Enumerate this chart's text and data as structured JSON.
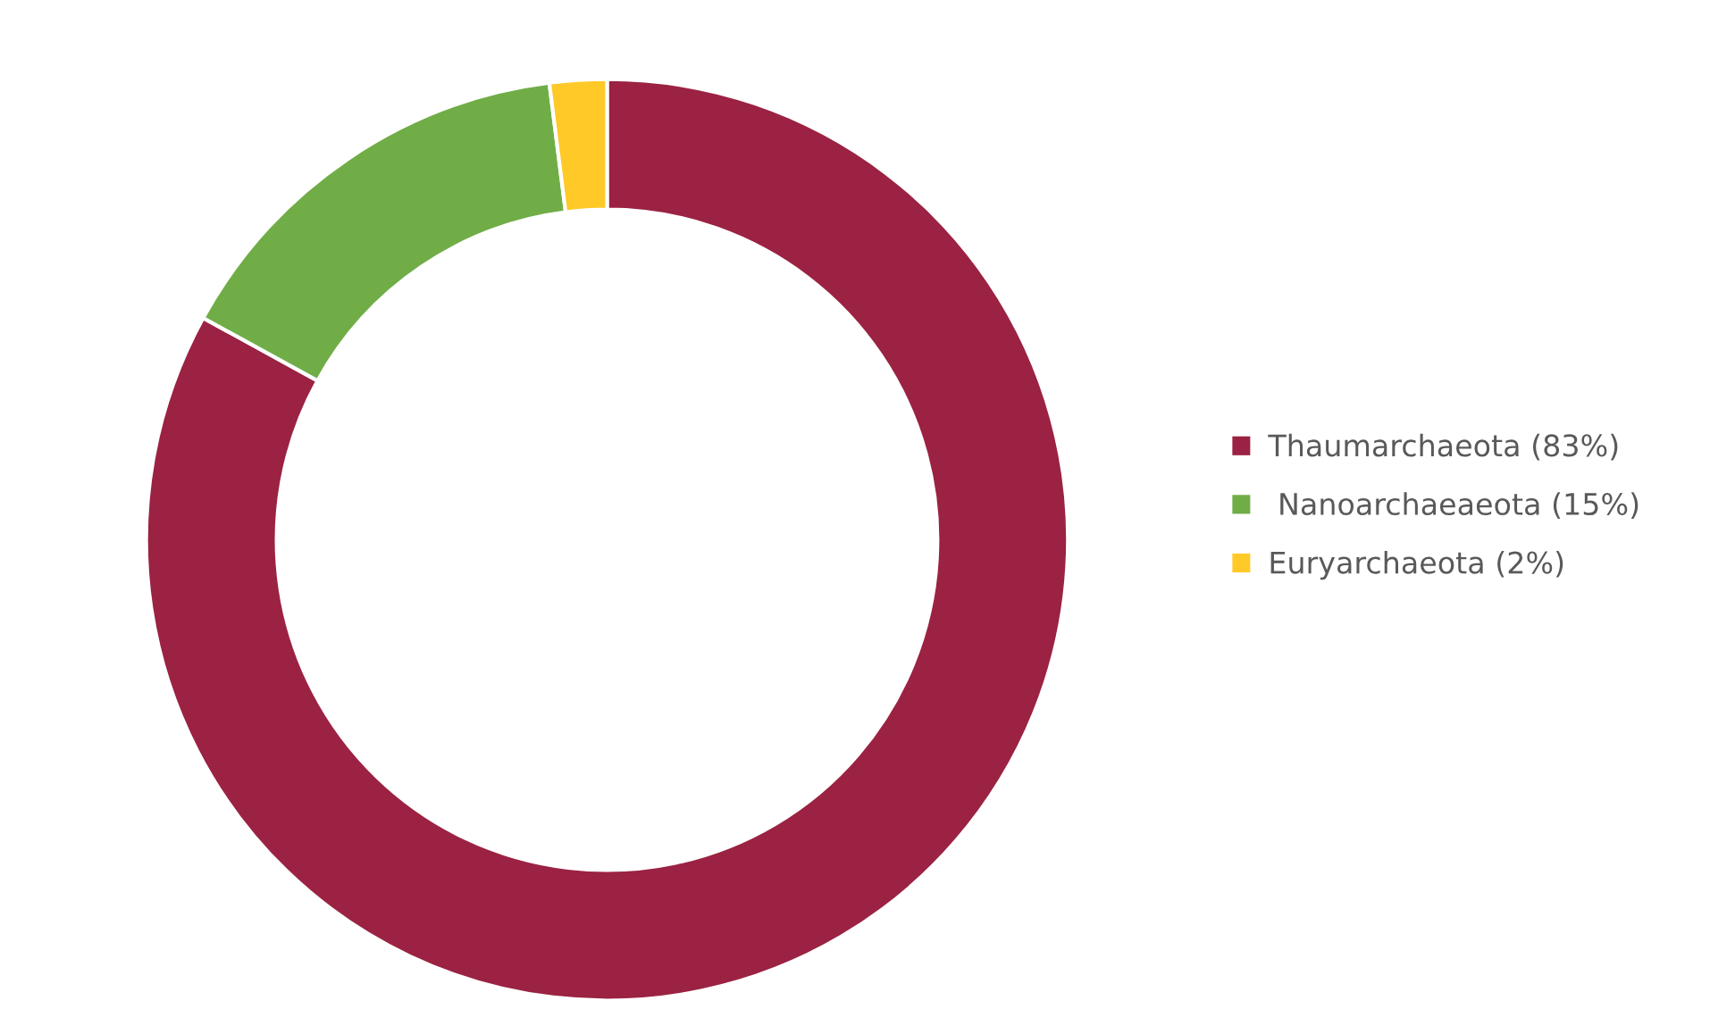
{
  "chart_data": {
    "type": "donut",
    "categories": [
      "Thaumarchaeota (83%)",
      " Nanoarchaeaeota (15%)",
      "Euryarchaeota (2%)"
    ],
    "values": [
      83,
      15,
      2
    ],
    "colors": [
      "#9b2242",
      "#70ad47",
      "#ffc928"
    ],
    "legend": "right"
  }
}
